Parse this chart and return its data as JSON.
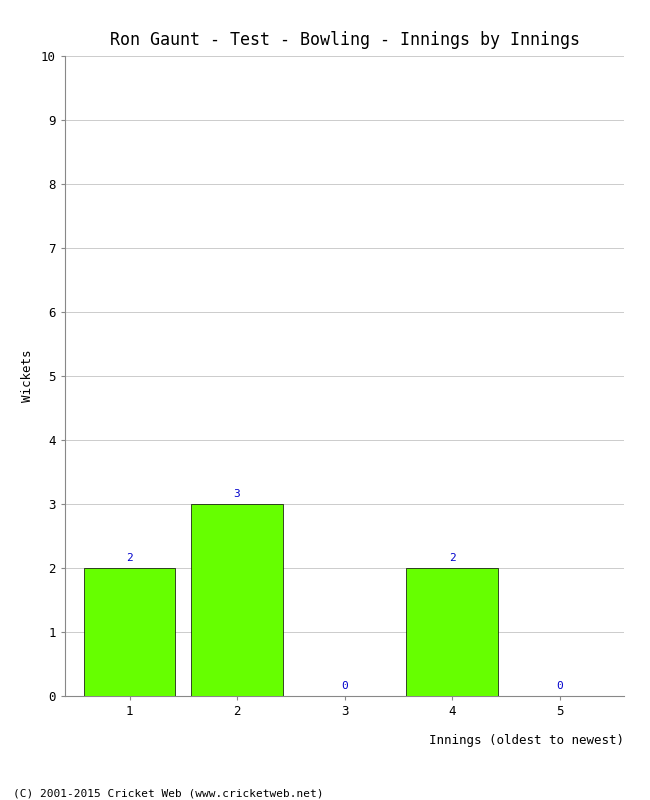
{
  "title": "Ron Gaunt - Test - Bowling - Innings by Innings",
  "xlabel": "Innings (oldest to newest)",
  "ylabel": "Wickets",
  "categories": [
    "1",
    "2",
    "3",
    "4",
    "5"
  ],
  "values": [
    2,
    3,
    0,
    2,
    0
  ],
  "bar_color": "#66ff00",
  "bar_edge_color": "#000000",
  "bar_edge_width": 0.5,
  "label_color": "#0000cc",
  "label_fontsize": 8,
  "ylim": [
    0,
    10
  ],
  "yticks": [
    0,
    1,
    2,
    3,
    4,
    5,
    6,
    7,
    8,
    9,
    10
  ],
  "background_color": "#ffffff",
  "grid_color": "#cccccc",
  "title_fontsize": 12,
  "axis_fontsize": 9,
  "tick_fontsize": 9,
  "footer_text": "(C) 2001-2015 Cricket Web (www.cricketweb.net)",
  "footer_fontsize": 8
}
